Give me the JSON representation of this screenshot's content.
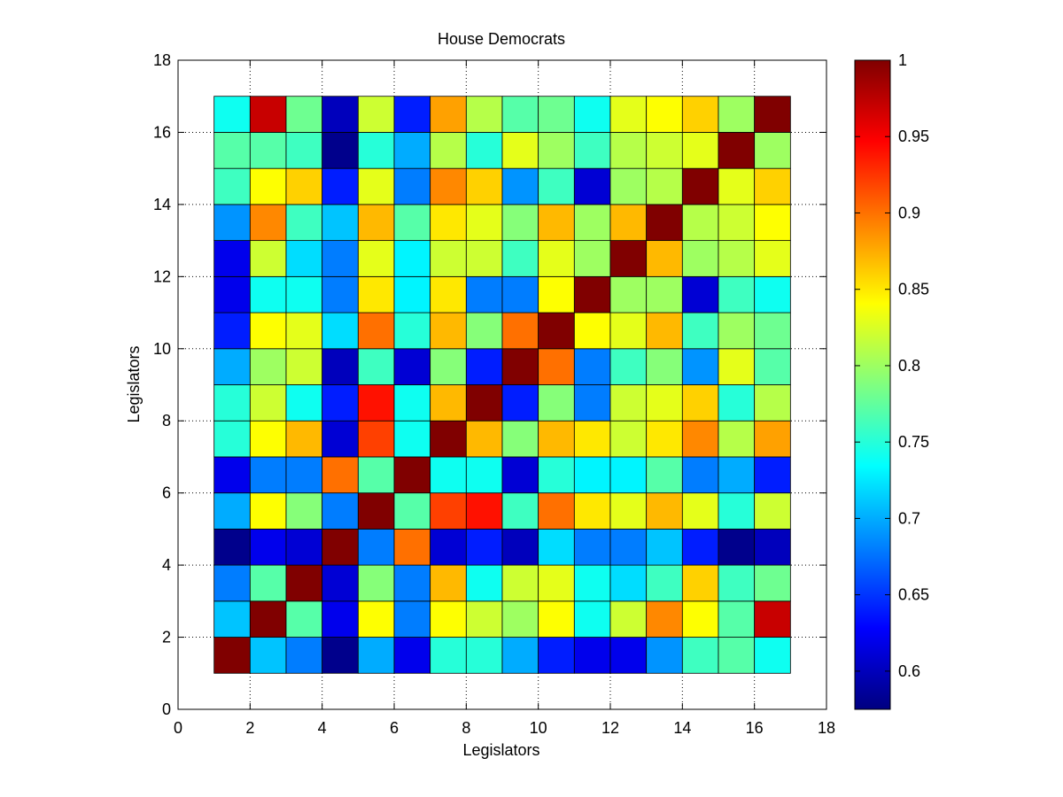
{
  "chart_data": {
    "type": "heatmap",
    "title": "House Democrats",
    "xlabel": "Legislators",
    "ylabel": "Legislators",
    "xlim": [
      0,
      18
    ],
    "ylim": [
      0,
      18
    ],
    "x_ticks": [
      "0",
      "2",
      "4",
      "6",
      "8",
      "10",
      "12",
      "14",
      "16",
      "18"
    ],
    "y_ticks": [
      "0",
      "2",
      "4",
      "6",
      "8",
      "10",
      "12",
      "14",
      "16",
      "18"
    ],
    "grid": true,
    "colormap": "jet",
    "color_range": [
      0.575,
      1.0
    ],
    "colorbar_ticks": [
      "0.6",
      "0.65",
      "0.7",
      "0.75",
      "0.8",
      "0.85",
      "0.9",
      "0.95",
      "1"
    ],
    "cell_origin": [
      1,
      1
    ],
    "rows_bottom_to_top": [
      [
        1.0,
        0.71,
        0.68,
        0.58,
        0.7,
        0.62,
        0.75,
        0.75,
        0.7,
        0.64,
        0.62,
        0.62,
        0.69,
        0.76,
        0.77,
        0.74
      ],
      [
        0.71,
        1.0,
        0.77,
        0.62,
        0.84,
        0.68,
        0.84,
        0.82,
        0.8,
        0.84,
        0.74,
        0.82,
        0.89,
        0.84,
        0.77,
        0.97
      ],
      [
        0.68,
        0.77,
        1.0,
        0.61,
        0.79,
        0.68,
        0.87,
        0.74,
        0.82,
        0.83,
        0.74,
        0.72,
        0.76,
        0.86,
        0.76,
        0.78
      ],
      [
        0.58,
        0.62,
        0.61,
        1.0,
        0.68,
        0.9,
        0.61,
        0.64,
        0.6,
        0.72,
        0.68,
        0.68,
        0.71,
        0.64,
        0.58,
        0.6
      ],
      [
        0.7,
        0.84,
        0.79,
        0.68,
        1.0,
        0.77,
        0.92,
        0.94,
        0.76,
        0.9,
        0.85,
        0.83,
        0.87,
        0.83,
        0.75,
        0.82
      ],
      [
        0.62,
        0.68,
        0.68,
        0.9,
        0.77,
        1.0,
        0.74,
        0.74,
        0.61,
        0.75,
        0.73,
        0.73,
        0.77,
        0.68,
        0.7,
        0.64
      ],
      [
        0.75,
        0.84,
        0.87,
        0.61,
        0.92,
        0.74,
        1.0,
        0.87,
        0.79,
        0.87,
        0.85,
        0.82,
        0.85,
        0.89,
        0.81,
        0.88
      ],
      [
        0.75,
        0.82,
        0.74,
        0.64,
        0.94,
        0.74,
        0.87,
        1.0,
        0.64,
        0.79,
        0.68,
        0.82,
        0.83,
        0.86,
        0.75,
        0.81
      ],
      [
        0.7,
        0.8,
        0.82,
        0.6,
        0.76,
        0.61,
        0.79,
        0.64,
        1.0,
        0.9,
        0.68,
        0.76,
        0.79,
        0.69,
        0.83,
        0.77
      ],
      [
        0.64,
        0.84,
        0.83,
        0.72,
        0.9,
        0.75,
        0.87,
        0.79,
        0.9,
        1.0,
        0.84,
        0.83,
        0.87,
        0.76,
        0.8,
        0.78
      ],
      [
        0.62,
        0.74,
        0.74,
        0.68,
        0.85,
        0.73,
        0.85,
        0.68,
        0.68,
        0.84,
        1.0,
        0.8,
        0.8,
        0.61,
        0.76,
        0.74
      ],
      [
        0.62,
        0.82,
        0.72,
        0.68,
        0.83,
        0.73,
        0.82,
        0.82,
        0.76,
        0.83,
        0.8,
        1.0,
        0.87,
        0.8,
        0.81,
        0.83
      ],
      [
        0.69,
        0.89,
        0.76,
        0.71,
        0.87,
        0.77,
        0.85,
        0.83,
        0.79,
        0.87,
        0.8,
        0.87,
        1.0,
        0.81,
        0.82,
        0.84
      ],
      [
        0.76,
        0.84,
        0.86,
        0.64,
        0.83,
        0.68,
        0.89,
        0.86,
        0.69,
        0.76,
        0.61,
        0.8,
        0.81,
        1.0,
        0.83,
        0.86
      ],
      [
        0.77,
        0.77,
        0.76,
        0.58,
        0.75,
        0.7,
        0.81,
        0.75,
        0.83,
        0.8,
        0.76,
        0.81,
        0.82,
        0.83,
        1.0,
        0.8
      ],
      [
        0.74,
        0.97,
        0.78,
        0.6,
        0.82,
        0.64,
        0.88,
        0.81,
        0.77,
        0.78,
        0.74,
        0.83,
        0.84,
        0.86,
        0.8,
        1.0
      ]
    ]
  }
}
